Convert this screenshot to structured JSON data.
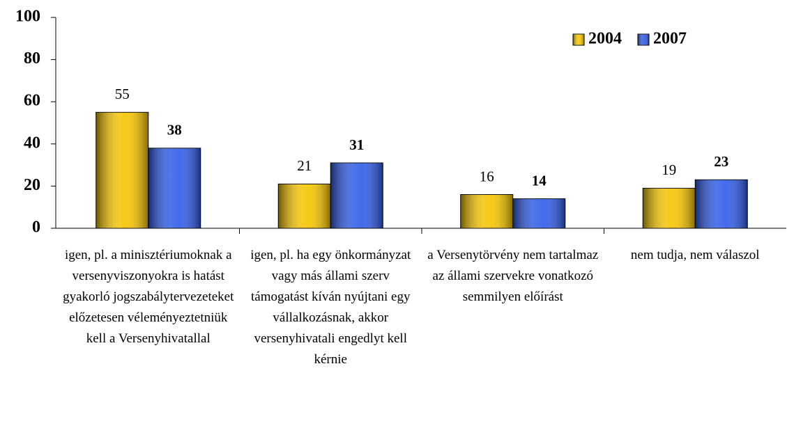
{
  "chart_data": {
    "type": "bar",
    "categories": [
      "igen, pl. a minisztériumoknak a versenyviszonyokra is hatást gyakorló jogszabálytervezeteket előzetesen véleményeztetniük kell a Versenyhivatallal",
      "igen, pl. ha egy önkormányzat vagy más állami szerv támogatást kíván nyújtani egy vállalkozásnak, akkor versenyhivatali engedlyt kell kérnie",
      "a Versenytörvény nem tartalmaz az állami szervekre vonatkozó semmilyen előírást",
      "nem tudja, nem válaszol"
    ],
    "series": [
      {
        "name": "2004",
        "color": "#f5c400",
        "values": [
          55,
          21,
          16,
          19
        ]
      },
      {
        "name": "2007",
        "color": "#2f5be8",
        "values": [
          38,
          31,
          14,
          23
        ]
      }
    ],
    "ylim": [
      0,
      100
    ],
    "yticks": [
      0,
      20,
      40,
      60,
      80,
      100
    ],
    "grid": false,
    "legend": "top-right"
  }
}
